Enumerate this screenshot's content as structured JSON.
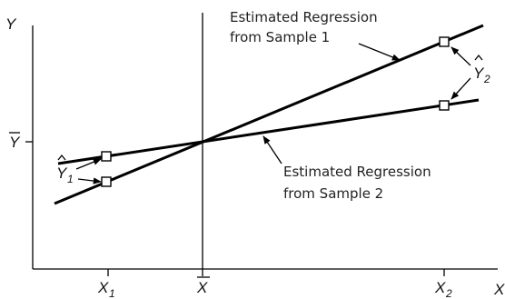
{
  "axes": {
    "y_label": "Y",
    "x_label": "X",
    "y_mean_label": "Y",
    "x_tick_1": {
      "base": "X",
      "sub": "1"
    },
    "x_mean_label": "X",
    "x_tick_2": {
      "base": "X",
      "sub": "2"
    }
  },
  "line_labels": {
    "sample_1": [
      "Estimated Regression",
      "from Sample 1"
    ],
    "sample_2": [
      "Estimated Regression",
      "from Sample 2"
    ]
  },
  "point_labels": {
    "y_hat_1": {
      "base": "Y",
      "sub": "1"
    },
    "y_hat_2": {
      "base": "Y",
      "sub": "2"
    }
  }
}
